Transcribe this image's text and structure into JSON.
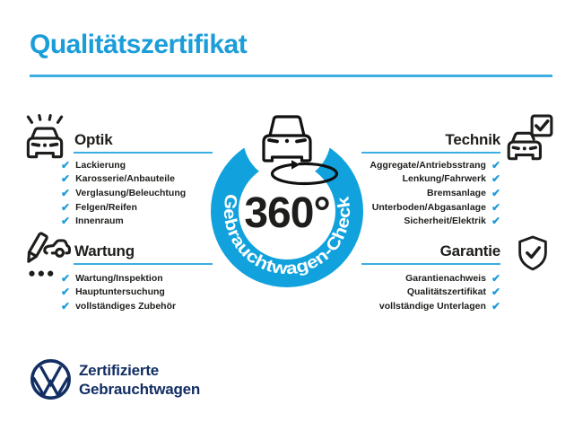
{
  "title": "Qualitätszertifikat",
  "checkmark": "✔",
  "colors": {
    "accent": "#1b9dd9",
    "ring": "#11a2de",
    "underline": "#3daee2",
    "check": "#1e9cd9",
    "navy": "#122e63",
    "ink": "#1d1d1b"
  },
  "center": {
    "degree_label": "360°",
    "ring_label": "Gebrauchtwagen-Check",
    "icon": "car-360-rotation-icon"
  },
  "sections": {
    "optik": {
      "label": "Optik",
      "icon": "car-shine-icon",
      "items": [
        "Lackierung",
        "Karosserie/Anbauteile",
        "Verglasung/Beleuchtung",
        "Felgen/Reifen",
        "Innenraum"
      ]
    },
    "technik": {
      "label": "Technik",
      "icon": "car-checkbox-icon",
      "items": [
        "Aggregate/Antriebsstrang",
        "Lenkung/Fahrwerk",
        "Bremsanlage",
        "Unterboden/Abgasanlage",
        "Sicherheit/Elektrik"
      ]
    },
    "wartung": {
      "label": "Wartung",
      "icon": "service-checklist-icon",
      "items": [
        "Wartung/Inspektion",
        "Hauptuntersuchung",
        "vollständiges Zubehör"
      ]
    },
    "garantie": {
      "label": "Garantie",
      "icon": "shield-check-icon",
      "items": [
        "Garantienachweis",
        "Qualitätszertifikat",
        "vollständige Unterlagen"
      ]
    }
  },
  "footer": {
    "logo": "vw-logo",
    "line1": "Zertifizierte",
    "line2": "Gebrauchtwagen"
  }
}
